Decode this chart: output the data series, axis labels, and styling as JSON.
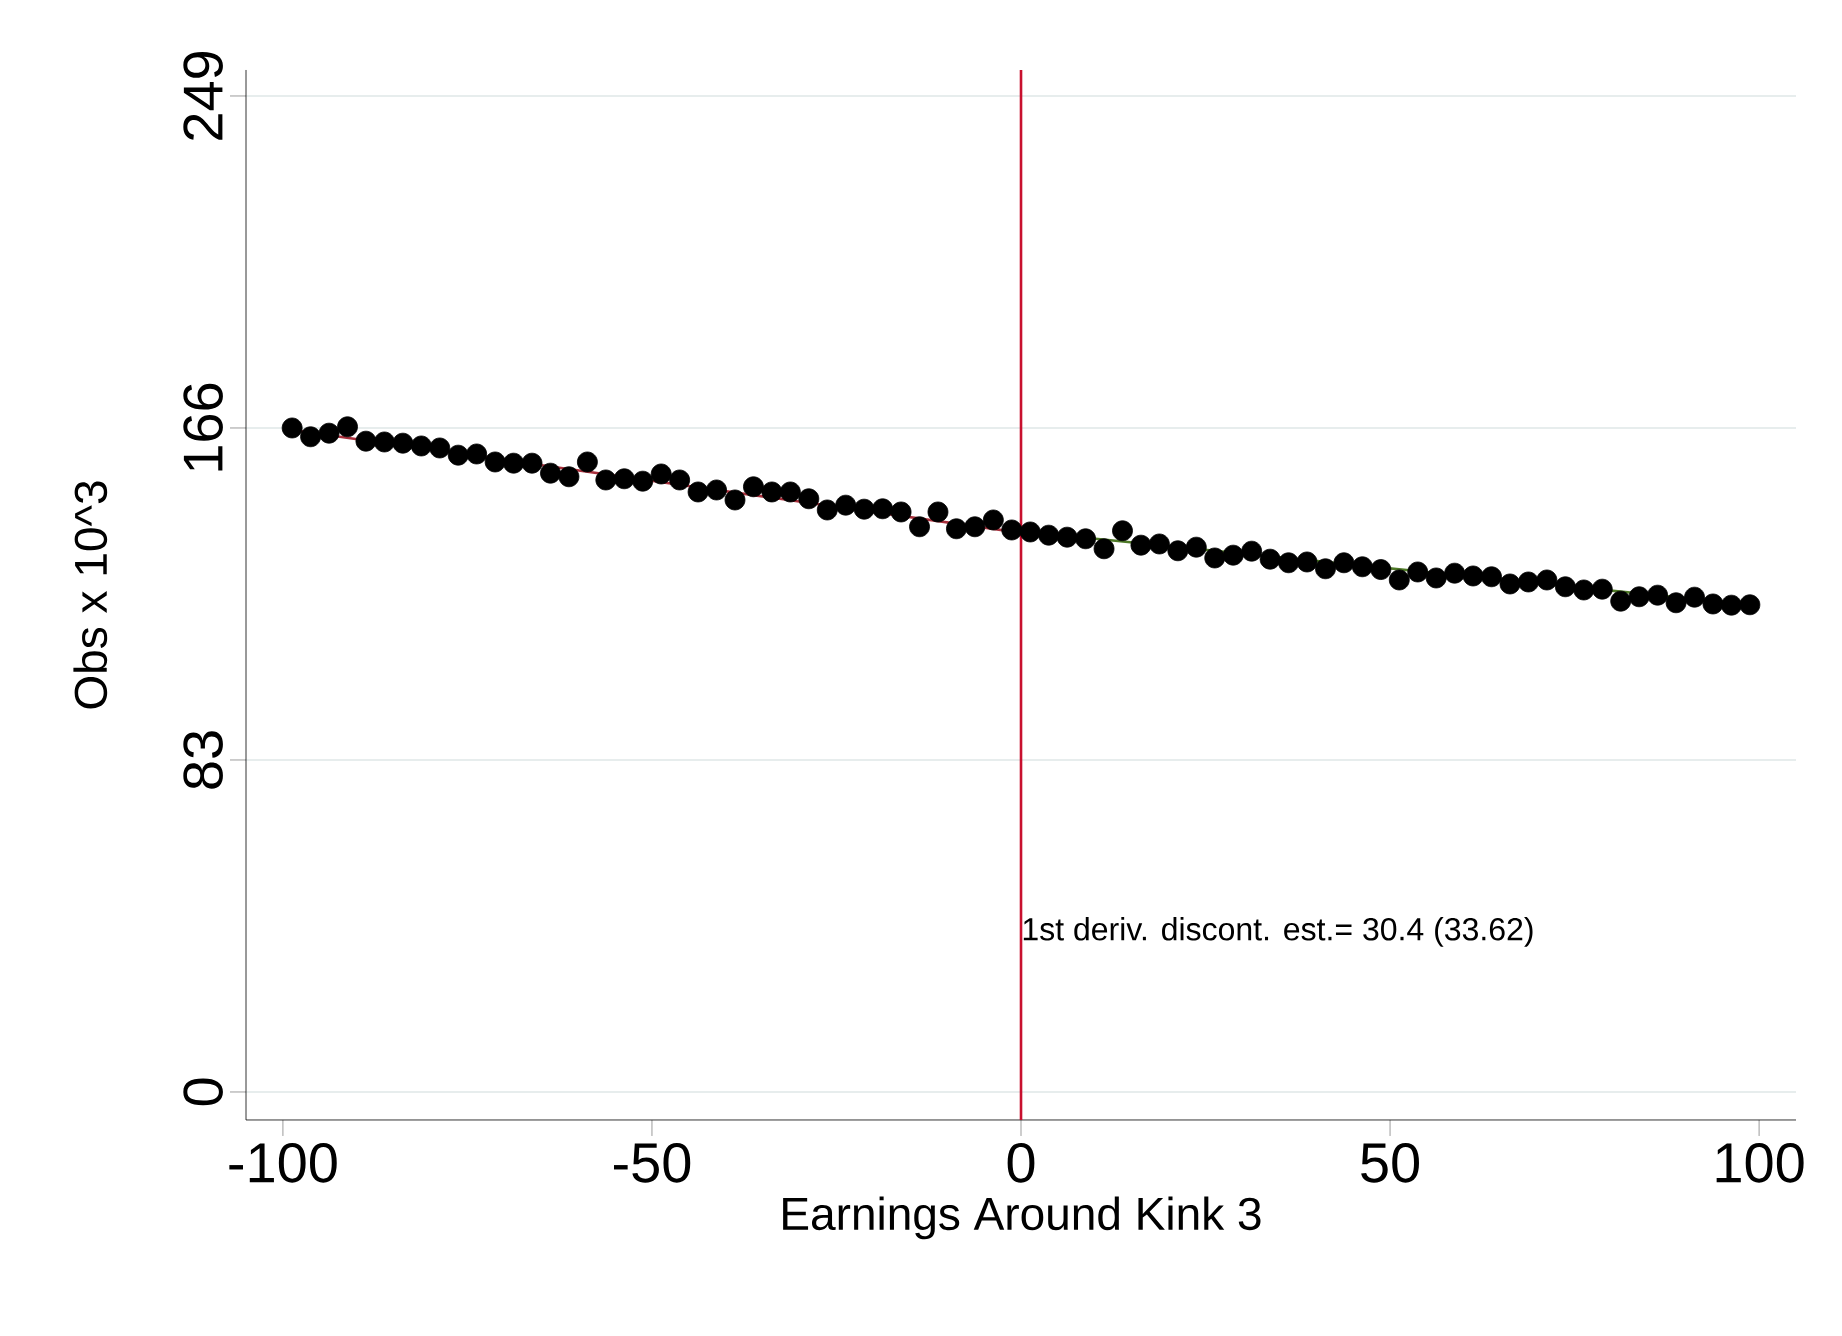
{
  "chart_data": {
    "type": "scatter",
    "xlabel": "Earnings Around Kink 3",
    "ylabel": "Obs x 10^3",
    "x": [
      -98.75,
      -96.25,
      -93.75,
      -91.25,
      -88.75,
      -86.25,
      -83.75,
      -81.25,
      -78.75,
      -76.25,
      -73.75,
      -71.25,
      -68.75,
      -66.25,
      -63.75,
      -61.25,
      -58.75,
      -56.25,
      -53.75,
      -51.25,
      -48.75,
      -46.25,
      -43.75,
      -41.25,
      -38.75,
      -36.25,
      -33.75,
      -31.25,
      -28.75,
      -26.25,
      -23.75,
      -21.25,
      -18.75,
      -16.25,
      -13.75,
      -11.25,
      -8.75,
      -6.25,
      -3.75,
      -1.25,
      1.25,
      3.75,
      6.25,
      8.75,
      11.25,
      13.75,
      16.25,
      18.75,
      21.25,
      23.75,
      26.25,
      28.75,
      31.25,
      33.75,
      36.25,
      38.75,
      41.25,
      43.75,
      46.25,
      48.75,
      51.25,
      53.75,
      56.25,
      58.75,
      61.25,
      63.75,
      66.25,
      68.75,
      71.25,
      73.75,
      76.25,
      78.75,
      81.25,
      83.75,
      86.25,
      88.75,
      91.25,
      93.75,
      96.25,
      98.75
    ],
    "series": [
      {
        "color": "#000000",
        "marker": "circle",
        "values": [
          166,
          163.8,
          164.7,
          166.3,
          162.7,
          162.5,
          162.2,
          161.5,
          161,
          159.2,
          159.5,
          157.5,
          157.2,
          157.2,
          154.7,
          153.8,
          157.5,
          153,
          153.3,
          152.7,
          154.5,
          153,
          150,
          150.5,
          148,
          151.3,
          150,
          150,
          148.3,
          145.5,
          146.7,
          145.7,
          145.8,
          145,
          141.3,
          145,
          140.8,
          141.3,
          143,
          140.5,
          140,
          139.2,
          138.7,
          138.3,
          135.8,
          140.3,
          136.7,
          137,
          135.3,
          136.2,
          133.5,
          134.2,
          135.2,
          133.2,
          132.3,
          132.5,
          130.8,
          132.3,
          131.3,
          130.6,
          128,
          130,
          128.5,
          129.7,
          129,
          128.8,
          127,
          127.5,
          128,
          126.3,
          125.5,
          125.7,
          122.7,
          123.8,
          124.2,
          122.3,
          123.7,
          122,
          121.7,
          121.8
        ]
      },
      {
        "type": "line",
        "color": "#a8303c",
        "x": [
          -100,
          0
        ],
        "values": [
          165.8,
          139.8
        ]
      },
      {
        "type": "line",
        "color": "#4f7a28",
        "x": [
          0,
          100
        ],
        "values": [
          140.2,
          121.6
        ]
      }
    ],
    "xlim": [
      -105,
      105
    ],
    "xticks": [
      -100,
      -50,
      0,
      50,
      100
    ],
    "ylim": [
      -7,
      255.5
    ],
    "yticks": [
      0,
      83,
      166,
      249
    ],
    "grid": "y",
    "ref_lines": [
      {
        "axis": "x",
        "value": 0,
        "color": "#c8102e"
      }
    ],
    "annotations": [
      {
        "text": "1st deriv. discont. est.= 30.4 (33.62)",
        "x": 0,
        "y": 40
      }
    ]
  }
}
